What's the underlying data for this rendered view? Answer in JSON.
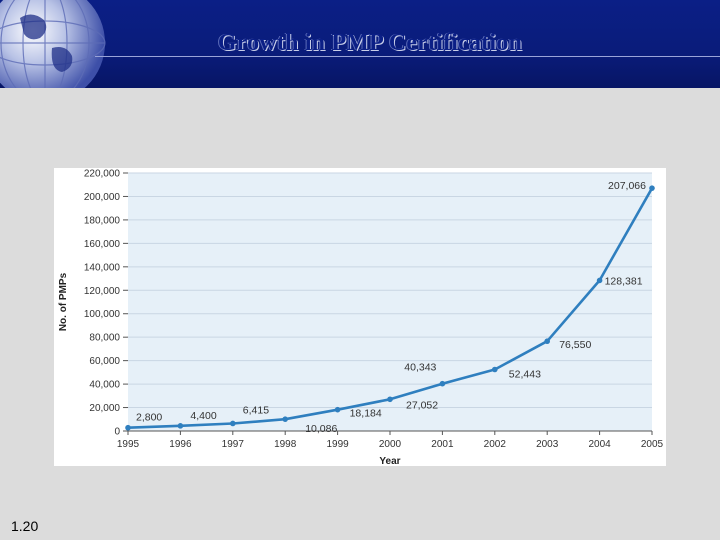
{
  "slide": {
    "title": "Growth in PMP Certification",
    "number": "1.20"
  },
  "colors": {
    "header": "#0b1f86",
    "plot_background": "#e6f0f8",
    "series": "#2f7fbf"
  },
  "chart_data": {
    "type": "line",
    "title": "Growth in PMP Certification",
    "xlabel": "Year",
    "ylabel": "No. of PMPs",
    "x": [
      "1995",
      "1996",
      "1997",
      "1998",
      "1999",
      "2000",
      "2001",
      "2002",
      "2003",
      "2004",
      "2005"
    ],
    "ylim": [
      0,
      220000
    ],
    "yticks": [
      "0",
      "20,000",
      "40,000",
      "60,000",
      "80,000",
      "100,000",
      "120,000",
      "140,000",
      "160,000",
      "180,000",
      "200,000",
      "220,000"
    ],
    "grid": true,
    "series": [
      {
        "name": "",
        "values": [
          2800,
          4400,
          6415,
          10086,
          18184,
          27052,
          40343,
          52443,
          76550,
          128381,
          207066
        ],
        "labels": [
          "2,800",
          "4,400",
          "6,415",
          "10,086",
          "18,184",
          "27,052",
          "40,343",
          "52,443",
          "76,550",
          "128,381",
          "207,066"
        ]
      }
    ]
  }
}
